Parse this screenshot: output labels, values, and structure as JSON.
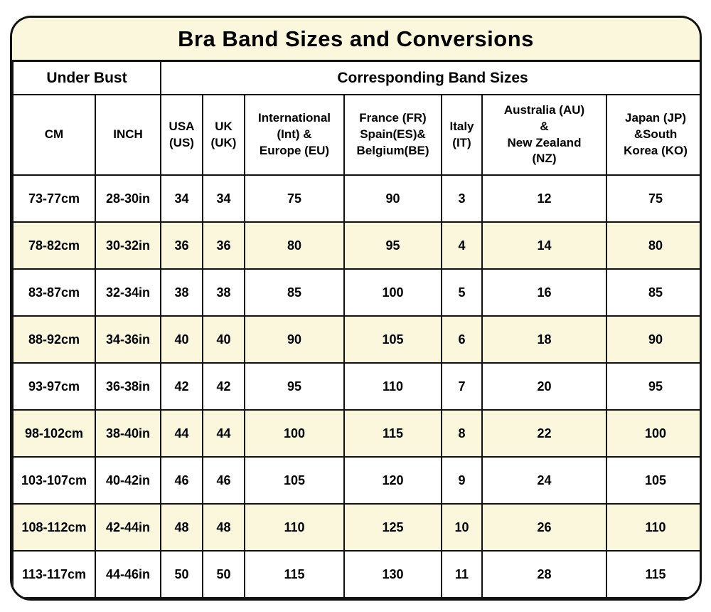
{
  "title": "Bra Band Sizes and Conversions",
  "colors": {
    "cream_stripe": "#FAF7DC",
    "grid_line": "#111111",
    "text": "#000000"
  },
  "chart_data": {
    "type": "table",
    "title": "Bra Band Sizes and Conversions",
    "column_groups": [
      {
        "label": "Under Bust",
        "colspan": 2
      },
      {
        "label": "Corresponding Band Sizes",
        "colspan": 7
      }
    ],
    "columns": [
      "CM",
      "INCH",
      "USA\n(US)",
      "UK\n(UK)",
      "International\n(Int) &\nEurope (EU)",
      "France (FR)\nSpain(ES)&\nBelgium(BE)",
      "Italy\n(IT)",
      "Australia (AU)\n&\nNew Zealand\n(NZ)",
      "Japan (JP)\n&South\nKorea (KO)"
    ],
    "rows": [
      [
        "73-77cm",
        "28-30in",
        "34",
        "34",
        "75",
        "90",
        "3",
        "12",
        "75"
      ],
      [
        "78-82cm",
        "30-32in",
        "36",
        "36",
        "80",
        "95",
        "4",
        "14",
        "80"
      ],
      [
        "83-87cm",
        "32-34in",
        "38",
        "38",
        "85",
        "100",
        "5",
        "16",
        "85"
      ],
      [
        "88-92cm",
        "34-36in",
        "40",
        "40",
        "90",
        "105",
        "6",
        "18",
        "90"
      ],
      [
        "93-97cm",
        "36-38in",
        "42",
        "42",
        "95",
        "110",
        "7",
        "20",
        "95"
      ],
      [
        "98-102cm",
        "38-40in",
        "44",
        "44",
        "100",
        "115",
        "8",
        "22",
        "100"
      ],
      [
        "103-107cm",
        "40-42in",
        "46",
        "46",
        "105",
        "120",
        "9",
        "24",
        "105"
      ],
      [
        "108-112cm",
        "42-44in",
        "48",
        "48",
        "110",
        "125",
        "10",
        "26",
        "110"
      ],
      [
        "113-117cm",
        "44-46in",
        "50",
        "50",
        "115",
        "130",
        "11",
        "28",
        "115"
      ]
    ]
  }
}
